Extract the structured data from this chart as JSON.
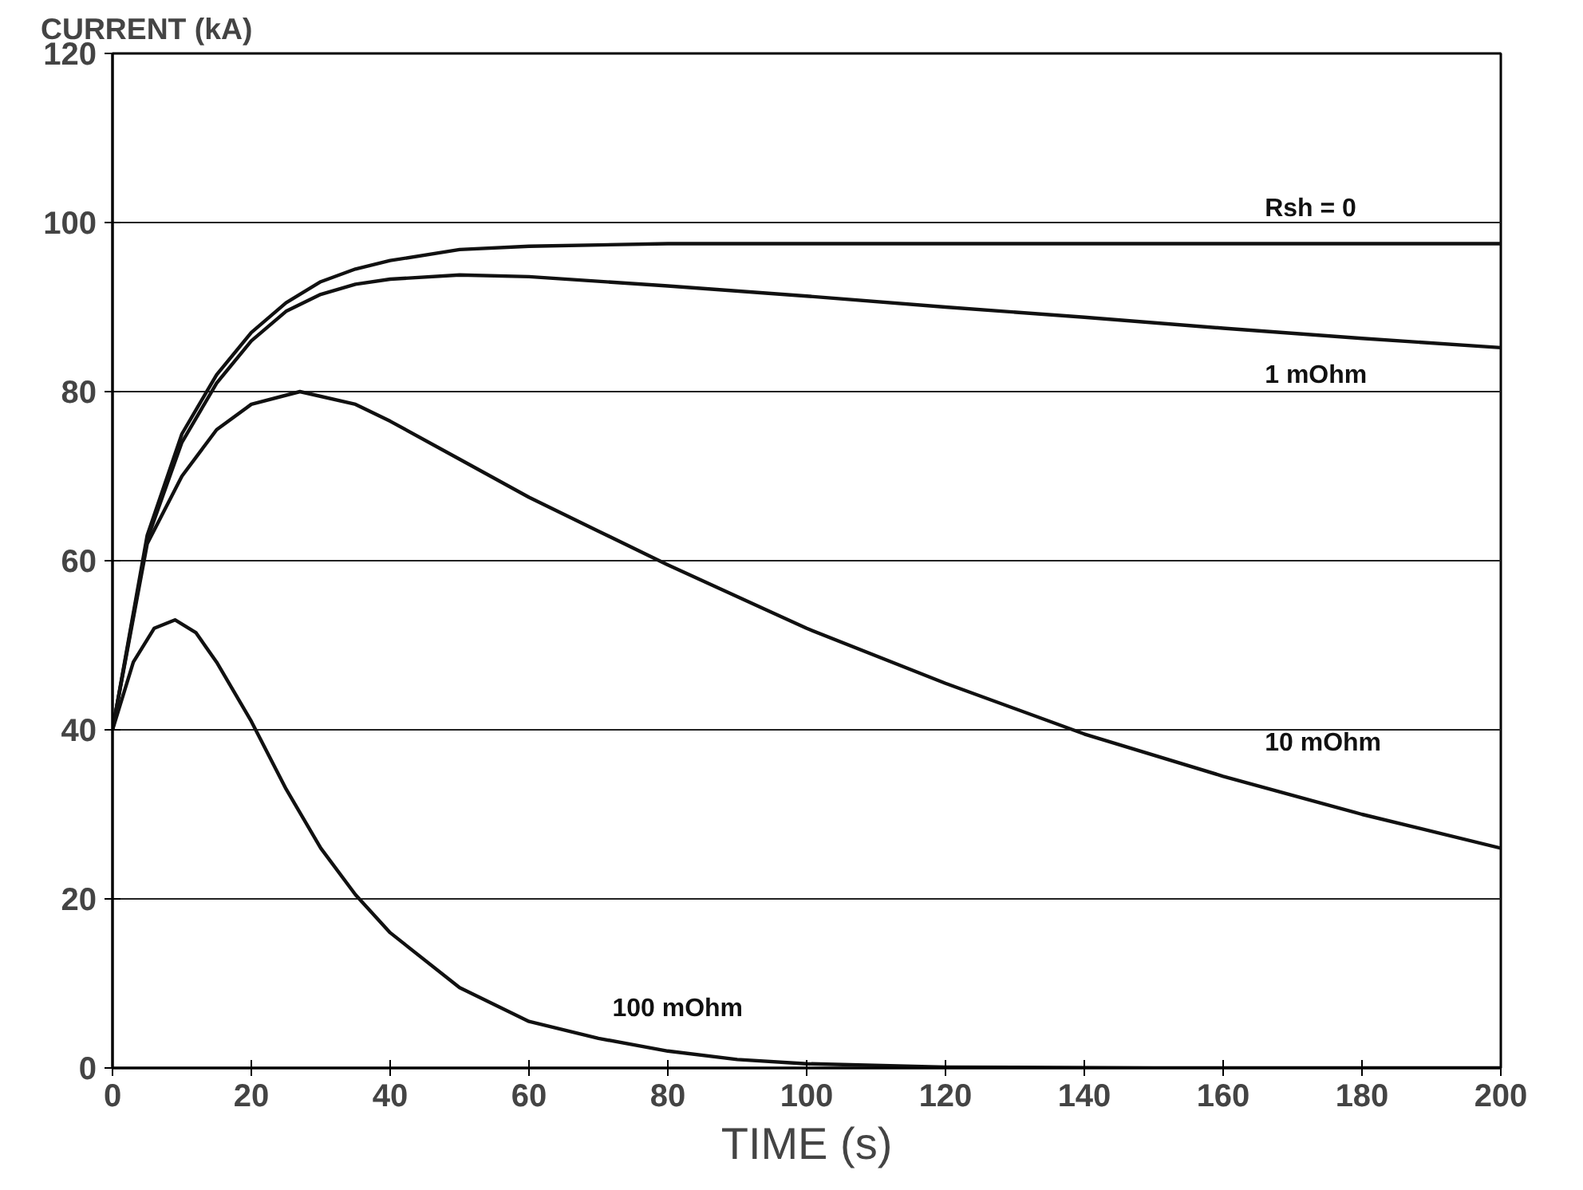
{
  "chart_data": {
    "type": "line",
    "ylabel": "CURRENT (kA)",
    "xlabel": "TIME (s)",
    "xlim": [
      0,
      200
    ],
    "ylim": [
      0,
      120
    ],
    "xticks": [
      0,
      20,
      40,
      60,
      80,
      100,
      120,
      140,
      160,
      180,
      200
    ],
    "yticks": [
      0,
      20,
      40,
      60,
      80,
      100,
      120
    ],
    "grid": "y",
    "marker": "none",
    "line_style": "solid",
    "series": [
      {
        "name": "Rsh = 0",
        "color": "#111111",
        "x": [
          0,
          5,
          10,
          15,
          20,
          25,
          30,
          35,
          40,
          50,
          60,
          80,
          100,
          120,
          140,
          160,
          180,
          200
        ],
        "values": [
          40,
          63,
          75,
          82,
          87,
          90.5,
          93,
          94.5,
          95.5,
          96.8,
          97.2,
          97.5,
          97.5,
          97.5,
          97.5,
          97.5,
          97.5,
          97.5
        ]
      },
      {
        "name": "1 mOhm",
        "color": "#111111",
        "x": [
          0,
          5,
          10,
          15,
          20,
          25,
          30,
          35,
          40,
          50,
          60,
          80,
          100,
          120,
          140,
          160,
          180,
          200
        ],
        "values": [
          40,
          62.5,
          74,
          81,
          86,
          89.5,
          91.5,
          92.7,
          93.3,
          93.8,
          93.6,
          92.5,
          91.3,
          90,
          88.8,
          87.5,
          86.3,
          85.2
        ]
      },
      {
        "name": "10 mOhm",
        "color": "#111111",
        "x": [
          0,
          5,
          10,
          15,
          20,
          27,
          35,
          40,
          50,
          60,
          70,
          80,
          100,
          120,
          140,
          160,
          180,
          200
        ],
        "values": [
          40,
          62,
          70,
          75.5,
          78.5,
          80,
          78.5,
          76.5,
          72,
          67.5,
          63.5,
          59.5,
          52,
          45.5,
          39.5,
          34.5,
          30,
          26
        ]
      },
      {
        "name": "100 mOhm",
        "color": "#111111",
        "x": [
          0,
          3,
          6,
          9,
          12,
          15,
          20,
          25,
          30,
          35,
          40,
          50,
          60,
          70,
          80,
          90,
          100,
          120,
          150,
          200
        ],
        "values": [
          40,
          48,
          52,
          53,
          51.5,
          48,
          41,
          33,
          26,
          20.5,
          16,
          9.5,
          5.5,
          3.5,
          2,
          1,
          0.5,
          0.1,
          0,
          0
        ]
      }
    ]
  }
}
